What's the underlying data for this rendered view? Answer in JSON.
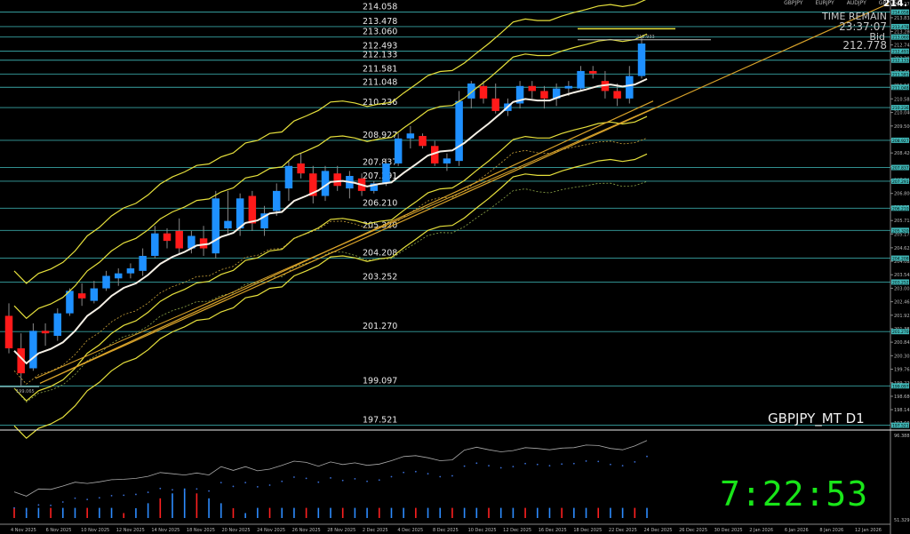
{
  "chart_title": "GBPJPY_MT D1",
  "tabs": [
    "GBPJPY",
    "EURJPY",
    "AUDJPY",
    "GBPUSD"
  ],
  "corner_price": "214.",
  "time_remain_label": "TIME REMAIN",
  "time_remain_value": "23:37:07",
  "bid_label": "Bid",
  "bid_value": "212.778",
  "clock": "7:22:53",
  "colors": {
    "bull": "#1e90ff",
    "bear": "#ff1a1a",
    "band": "#e6e03c",
    "level": "#3fb6b6",
    "ma": "#f5f0e6",
    "trend": "#d9a32a",
    "clock": "#19e619"
  },
  "low_label": "199.065",
  "high_label": "212.933",
  "chart_data": {
    "type": "candlestick",
    "dates": [
      "4 Nov 2025",
      "6 Nov 2025",
      "10 Nov 2025",
      "12 Nov 2025",
      "14 Nov 2025",
      "18 Nov 2025",
      "20 Nov 2025",
      "24 Nov 2025",
      "26 Nov 2025",
      "28 Nov 2025",
      "2 Dec 2025",
      "4 Dec 2025",
      "8 Dec 2025",
      "10 Dec 2025",
      "12 Dec 2025",
      "16 Dec 2025",
      "18 Dec 2025",
      "22 Dec 2025",
      "24 Dec 2025",
      "26 Dec 2025",
      "30 Dec 2025",
      "2 Jan 2026",
      "6 Jan 2026",
      "8 Jan 2026",
      "12 Jan 2026"
    ],
    "level_labels": [
      "214.058",
      "213.478",
      "213.060",
      "212.493",
      "212.133",
      "211.581",
      "211.048",
      "210.236",
      "208.927",
      "207.837",
      "207.291",
      "206.210",
      "205.320",
      "204.208",
      "203.252",
      "201.270",
      "199.097",
      "197.521"
    ],
    "axis_ticks": [
      "214.375",
      "213.835",
      "213.280",
      "212.745",
      "212.205",
      "211.665",
      "211.125",
      "210.585",
      "210.040",
      "209.500",
      "208.960",
      "208.420",
      "207.880",
      "207.340",
      "206.800",
      "206.255",
      "205.715",
      "205.175",
      "204.625",
      "204.085",
      "203.545",
      "203.005",
      "202.465",
      "201.925",
      "201.385",
      "200.845",
      "200.305",
      "199.765",
      "199.220",
      "198.680",
      "198.145",
      "197.605"
    ],
    "indicator_ticks": [
      "96.388",
      "51.3291"
    ],
    "candles": [
      {
        "o": 201.9,
        "h": 202.4,
        "l": 200.4,
        "c": 200.6
      },
      {
        "o": 200.6,
        "h": 201.2,
        "l": 199.1,
        "c": 199.6
      },
      {
        "o": 199.8,
        "h": 201.6,
        "l": 199.7,
        "c": 201.3
      },
      {
        "o": 201.3,
        "h": 201.6,
        "l": 200.7,
        "c": 201.2
      },
      {
        "o": 201.1,
        "h": 202.2,
        "l": 200.9,
        "c": 202.0
      },
      {
        "o": 202.0,
        "h": 203.0,
        "l": 201.9,
        "c": 202.9
      },
      {
        "o": 202.8,
        "h": 203.2,
        "l": 202.3,
        "c": 202.6
      },
      {
        "o": 202.5,
        "h": 203.3,
        "l": 202.4,
        "c": 203.0
      },
      {
        "o": 203.0,
        "h": 203.7,
        "l": 202.9,
        "c": 203.5
      },
      {
        "o": 203.4,
        "h": 203.8,
        "l": 203.1,
        "c": 203.6
      },
      {
        "o": 203.6,
        "h": 204.0,
        "l": 203.4,
        "c": 203.8
      },
      {
        "o": 203.7,
        "h": 204.6,
        "l": 203.5,
        "c": 204.3
      },
      {
        "o": 204.3,
        "h": 205.5,
        "l": 204.2,
        "c": 205.2
      },
      {
        "o": 205.2,
        "h": 205.4,
        "l": 204.6,
        "c": 204.9
      },
      {
        "o": 205.3,
        "h": 205.8,
        "l": 204.4,
        "c": 204.6
      },
      {
        "o": 204.6,
        "h": 205.3,
        "l": 204.4,
        "c": 205.1
      },
      {
        "o": 205.0,
        "h": 205.5,
        "l": 204.3,
        "c": 204.6
      },
      {
        "o": 204.4,
        "h": 206.9,
        "l": 204.2,
        "c": 206.6
      },
      {
        "o": 205.4,
        "h": 206.9,
        "l": 205.2,
        "c": 205.7
      },
      {
        "o": 205.4,
        "h": 206.8,
        "l": 205.1,
        "c": 206.6
      },
      {
        "o": 206.7,
        "h": 206.9,
        "l": 205.3,
        "c": 205.6
      },
      {
        "o": 205.4,
        "h": 206.3,
        "l": 205.1,
        "c": 206.0
      },
      {
        "o": 206.1,
        "h": 207.2,
        "l": 205.9,
        "c": 206.9
      },
      {
        "o": 207.0,
        "h": 208.1,
        "l": 206.5,
        "c": 207.9
      },
      {
        "o": 208.0,
        "h": 208.4,
        "l": 207.4,
        "c": 207.6
      },
      {
        "o": 207.6,
        "h": 207.9,
        "l": 206.4,
        "c": 206.7
      },
      {
        "o": 206.7,
        "h": 207.9,
        "l": 206.5,
        "c": 207.7
      },
      {
        "o": 207.6,
        "h": 207.9,
        "l": 206.9,
        "c": 207.1
      },
      {
        "o": 207.0,
        "h": 207.7,
        "l": 206.6,
        "c": 207.5
      },
      {
        "o": 207.4,
        "h": 207.6,
        "l": 206.7,
        "c": 206.9
      },
      {
        "o": 206.9,
        "h": 207.3,
        "l": 206.8,
        "c": 207.2
      },
      {
        "o": 207.2,
        "h": 208.2,
        "l": 207.1,
        "c": 208.0
      },
      {
        "o": 208.0,
        "h": 209.2,
        "l": 207.9,
        "c": 209.0
      },
      {
        "o": 209.0,
        "h": 209.5,
        "l": 208.6,
        "c": 209.2
      },
      {
        "o": 209.1,
        "h": 209.2,
        "l": 208.6,
        "c": 208.7
      },
      {
        "o": 208.7,
        "h": 208.9,
        "l": 207.9,
        "c": 208.0
      },
      {
        "o": 208.0,
        "h": 208.4,
        "l": 207.7,
        "c": 208.2
      },
      {
        "o": 208.1,
        "h": 210.9,
        "l": 207.9,
        "c": 210.5
      },
      {
        "o": 210.6,
        "h": 211.3,
        "l": 210.2,
        "c": 211.2
      },
      {
        "o": 211.1,
        "h": 211.3,
        "l": 210.4,
        "c": 210.6
      },
      {
        "o": 210.6,
        "h": 211.2,
        "l": 210.0,
        "c": 210.1
      },
      {
        "o": 210.1,
        "h": 210.6,
        "l": 209.9,
        "c": 210.4
      },
      {
        "o": 210.4,
        "h": 211.3,
        "l": 210.2,
        "c": 211.1
      },
      {
        "o": 211.1,
        "h": 211.3,
        "l": 210.6,
        "c": 210.9
      },
      {
        "o": 210.9,
        "h": 211.1,
        "l": 210.2,
        "c": 210.6
      },
      {
        "o": 210.6,
        "h": 211.2,
        "l": 210.3,
        "c": 211.0
      },
      {
        "o": 211.0,
        "h": 211.3,
        "l": 210.7,
        "c": 211.1
      },
      {
        "o": 211.0,
        "h": 211.9,
        "l": 210.9,
        "c": 211.7
      },
      {
        "o": 211.7,
        "h": 211.9,
        "l": 211.4,
        "c": 211.6
      },
      {
        "o": 211.3,
        "h": 211.7,
        "l": 210.6,
        "c": 210.9
      },
      {
        "o": 210.9,
        "h": 211.2,
        "l": 210.3,
        "c": 210.6
      },
      {
        "o": 210.6,
        "h": 211.9,
        "l": 210.4,
        "c": 211.5
      },
      {
        "o": 211.5,
        "h": 213.1,
        "l": 211.4,
        "c": 212.8
      }
    ]
  }
}
